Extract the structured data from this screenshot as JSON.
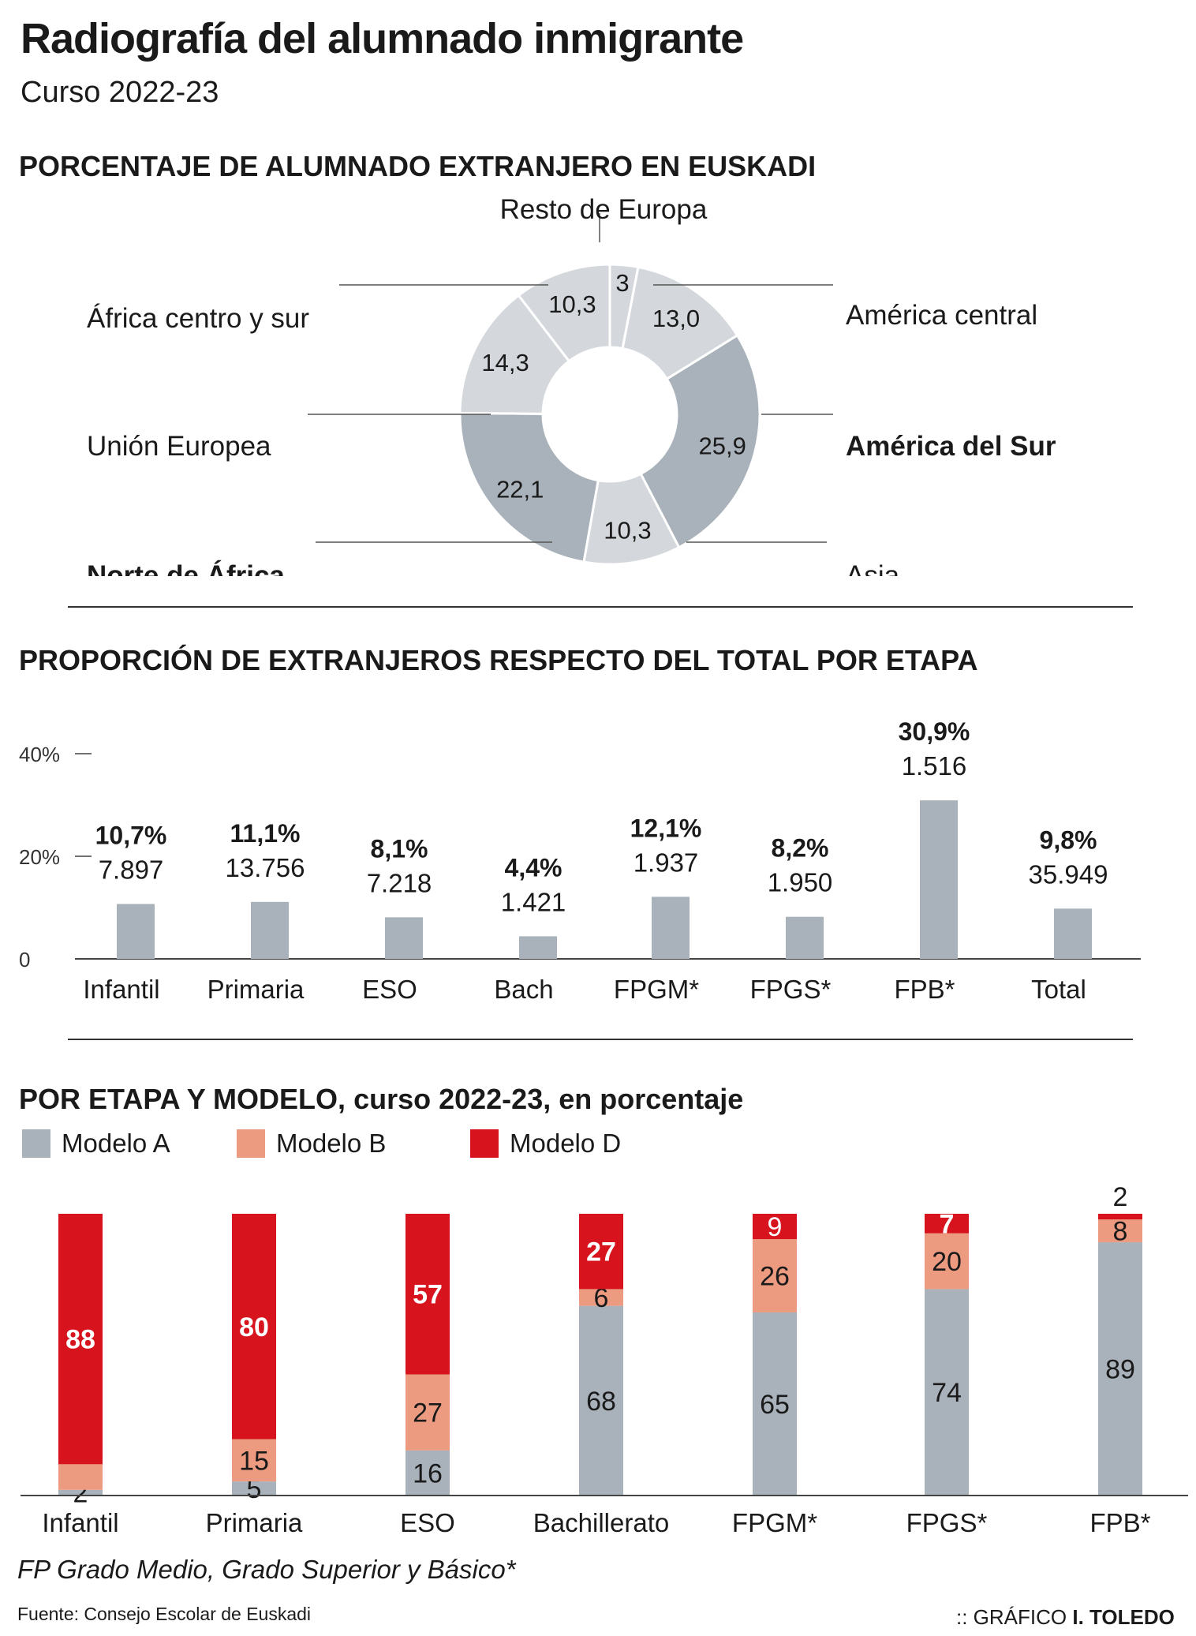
{
  "title": "Radiografía del alumnado inmigrante",
  "subtitle": "Curso 2022-23",
  "colors": {
    "light_gray": "#d4d8dc",
    "mid_gray": "#a9b2ba",
    "modelo_a": "#a9b2ba",
    "modelo_b": "#ec9a80",
    "modelo_d": "#d7141d"
  },
  "donut": {
    "section_title": "PORCENTAJE DE ALUMNADO EXTRANJERO EN EUSKADI",
    "chart_data": {
      "type": "pie",
      "slices": [
        {
          "label": "Resto de Europa",
          "value": 3,
          "value_label": "3",
          "bold": false,
          "color": "light"
        },
        {
          "label": "América central",
          "value": 13.0,
          "value_label": "13,0",
          "bold": false,
          "color": "light"
        },
        {
          "label": "América del Sur",
          "value": 25.9,
          "value_label": "25,9",
          "bold": true,
          "color": "mid"
        },
        {
          "label": "Asia",
          "value": 10.3,
          "value_label": "10,3",
          "bold": false,
          "color": "light"
        },
        {
          "label": "Norte de África",
          "value": 22.1,
          "value_label": "22,1",
          "bold": true,
          "color": "mid"
        },
        {
          "label": "Unión Europea",
          "value": 14.3,
          "value_label": "14,3",
          "bold": false,
          "color": "light"
        },
        {
          "label": "África centro y sur",
          "value": 10.3,
          "value_label": "10,3",
          "bold": false,
          "color": "light"
        }
      ]
    }
  },
  "proportion": {
    "section_title": "PROPORCIÓN DE EXTRANJEROS RESPECTO DEL TOTAL POR ETAPA",
    "chart_data": {
      "type": "bar",
      "ylim": [
        0,
        40
      ],
      "yticks": [
        {
          "value": 40,
          "label": "40%"
        },
        {
          "value": 20,
          "label": "20%"
        },
        {
          "value": 0,
          "label": "0"
        }
      ],
      "categories": [
        "Infantil",
        "Primaria",
        "ESO",
        "Bach",
        "FPGM*",
        "FPGS*",
        "FPB*",
        "Total"
      ],
      "values": [
        10.7,
        11.1,
        8.1,
        4.4,
        12.1,
        8.2,
        30.9,
        9.8
      ],
      "value_labels": [
        "10,7%",
        "11,1%",
        "8,1%",
        "4,4%",
        "12,1%",
        "8,2%",
        "30,9%",
        "9,8%"
      ],
      "count_labels": [
        "7.897",
        "13.756",
        "7.218",
        "1.421",
        "1.937",
        "1.950",
        "1.516",
        "35.949"
      ]
    }
  },
  "model": {
    "section_title_bold": "POR ETAPA Y MODELO,",
    "section_title_rest": " curso 2022-23, en porcentaje",
    "legend": [
      "Modelo A",
      "Modelo B",
      "Modelo D"
    ],
    "chart_data": {
      "type": "bar",
      "stacked": true,
      "categories": [
        "Infantil",
        "Primaria",
        "ESO",
        "Bachillerato",
        "FPGM*",
        "FPGS*",
        "FPB*"
      ],
      "series": [
        {
          "name": "Modelo A",
          "values": [
            2,
            5,
            16,
            68,
            65,
            74,
            89
          ]
        },
        {
          "name": "Modelo B",
          "values": [
            9,
            15,
            27,
            6,
            26,
            20,
            8
          ]
        },
        {
          "name": "Modelo D",
          "values": [
            88,
            80,
            57,
            27,
            9,
            7,
            2
          ]
        }
      ],
      "ylim": [
        0,
        100
      ]
    }
  },
  "footnote": "FP Grado Medio, Grado Superior y Básico*",
  "source": "Fuente: Consejo Escolar de Euskadi",
  "credit_prefix": ":: GRÁFICO ",
  "credit_name": "I. TOLEDO"
}
